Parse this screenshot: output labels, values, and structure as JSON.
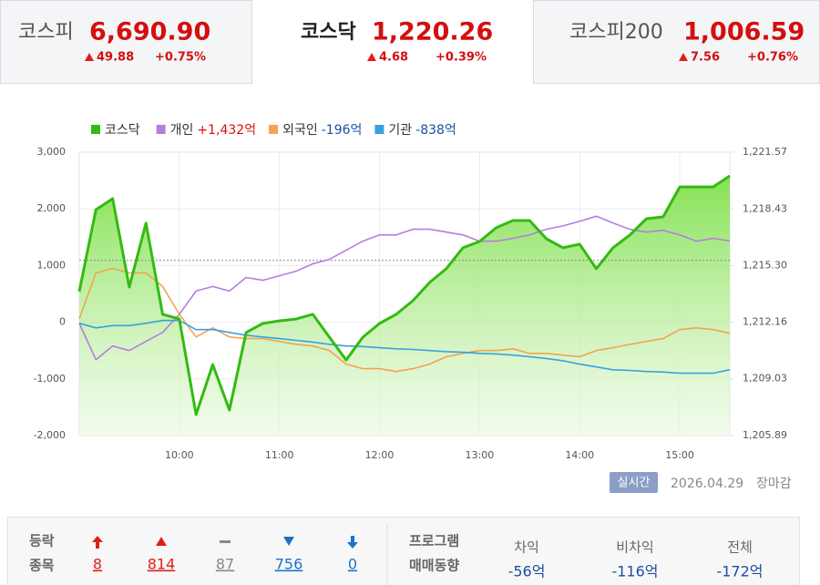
{
  "indices": [
    {
      "name": "코스피",
      "value": "6,690.90",
      "change": "49.88",
      "rate": "+0.75%"
    },
    {
      "name": "코스닥",
      "value": "1,220.26",
      "change": "4.68",
      "rate": "+0.39%"
    },
    {
      "name": "코스피200",
      "value": "1,006.59",
      "change": "7.56",
      "rate": "+0.76%"
    }
  ],
  "chart_data": {
    "type": "line",
    "x": [
      "09:00",
      "09:10",
      "09:20",
      "09:30",
      "09:40",
      "09:50",
      "10:00",
      "10:10",
      "10:20",
      "10:30",
      "10:40",
      "10:50",
      "11:00",
      "11:10",
      "11:20",
      "11:30",
      "11:40",
      "11:50",
      "12:00",
      "12:10",
      "12:20",
      "12:30",
      "12:40",
      "12:50",
      "13:00",
      "13:10",
      "13:20",
      "13:30",
      "13:40",
      "13:50",
      "14:00",
      "14:10",
      "14:20",
      "14:30",
      "14:40",
      "14:50",
      "15:00",
      "15:10",
      "15:20",
      "15:30"
    ],
    "xticks": [
      "10:00",
      "11:00",
      "12:00",
      "13:00",
      "14:00",
      "15:00"
    ],
    "ylim": [
      -2000,
      3000
    ],
    "yticks": [
      {
        "value": -2000,
        "label": "-2,000"
      },
      {
        "value": -1000,
        "label": "-1,000"
      },
      0,
      {
        "value": 1000,
        "label": "1,000"
      },
      {
        "value": 2000,
        "label": "2,000"
      },
      {
        "value": 3000,
        "label": "3,000"
      }
    ],
    "y2lim": [
      1205.89,
      1221.57
    ],
    "y2ticks": [
      {
        "value": 1205.89,
        "label": "1,205.89"
      },
      {
        "value": 1209.03,
        "label": "1,209.03"
      },
      {
        "value": 1212.16,
        "label": "1,212.16"
      },
      {
        "value": 1215.3,
        "label": "1,215.30"
      },
      {
        "value": 1218.43,
        "label": "1,218.43"
      },
      {
        "value": 1221.57,
        "label": "1,221.57"
      }
    ],
    "reference_line": 1215.58,
    "grid": true,
    "series": [
      {
        "name": "코스닥",
        "color": "#33bb11",
        "axis": "y2",
        "fill": true,
        "values": [
          1213.86,
          1218.39,
          1219.0,
          1214.11,
          1217.64,
          1212.6,
          1212.34,
          1207.05,
          1209.82,
          1207.3,
          1211.59,
          1212.09,
          1212.24,
          1212.34,
          1212.6,
          1211.33,
          1210.07,
          1211.33,
          1212.09,
          1212.6,
          1213.35,
          1214.36,
          1215.12,
          1216.28,
          1216.63,
          1217.39,
          1217.79,
          1217.79,
          1216.78,
          1216.28,
          1216.48,
          1215.12,
          1216.28,
          1216.98,
          1217.89,
          1217.99,
          1219.65,
          1219.65,
          1219.65,
          1220.26
        ]
      },
      {
        "name": "개인",
        "color": "#b57edc",
        "legend_value": 1432,
        "legend_label": "+1,432억",
        "values": [
          -20,
          -660,
          -420,
          -500,
          -340,
          -180,
          140,
          550,
          630,
          550,
          790,
          740,
          820,
          900,
          1030,
          1110,
          1270,
          1430,
          1540,
          1540,
          1640,
          1640,
          1590,
          1540,
          1430,
          1430,
          1480,
          1540,
          1640,
          1700,
          1780,
          1870,
          1750,
          1640,
          1590,
          1620,
          1540,
          1430,
          1480,
          1432
        ]
      },
      {
        "name": "외국인",
        "color": "#f4a350",
        "legend_value": -196,
        "legend_label": "-196억",
        "values": [
          60,
          870,
          950,
          870,
          870,
          630,
          140,
          -260,
          -100,
          -260,
          -290,
          -290,
          -340,
          -390,
          -420,
          -500,
          -740,
          -820,
          -820,
          -870,
          -820,
          -740,
          -610,
          -550,
          -500,
          -500,
          -470,
          -550,
          -550,
          -580,
          -610,
          -500,
          -450,
          -390,
          -340,
          -290,
          -130,
          -100,
          -130,
          -196
        ]
      },
      {
        "name": "기관",
        "color": "#3aa0e0",
        "legend_value": -838,
        "legend_label": "-838억",
        "values": [
          -20,
          -100,
          -60,
          -60,
          -20,
          30,
          30,
          -130,
          -130,
          -180,
          -230,
          -260,
          -290,
          -320,
          -350,
          -390,
          -420,
          -430,
          -450,
          -470,
          -480,
          -500,
          -520,
          -530,
          -550,
          -560,
          -580,
          -610,
          -640,
          -680,
          -740,
          -790,
          -840,
          -850,
          -870,
          -880,
          -900,
          -900,
          -900,
          -838
        ]
      }
    ]
  },
  "status": {
    "badge": "실시간",
    "date": "2026.04.29",
    "state": "장마감"
  },
  "breadth": {
    "label_lines": [
      "등락",
      "종목"
    ],
    "items": [
      "8",
      "814",
      "87",
      "756",
      "0"
    ]
  },
  "program": {
    "label_lines": [
      "프로그램",
      "매매동향"
    ],
    "columns": [
      {
        "name": "차익",
        "value": "-56억"
      },
      {
        "name": "비차익",
        "value": "-116억"
      },
      {
        "name": "전체",
        "value": "-172억"
      }
    ]
  }
}
